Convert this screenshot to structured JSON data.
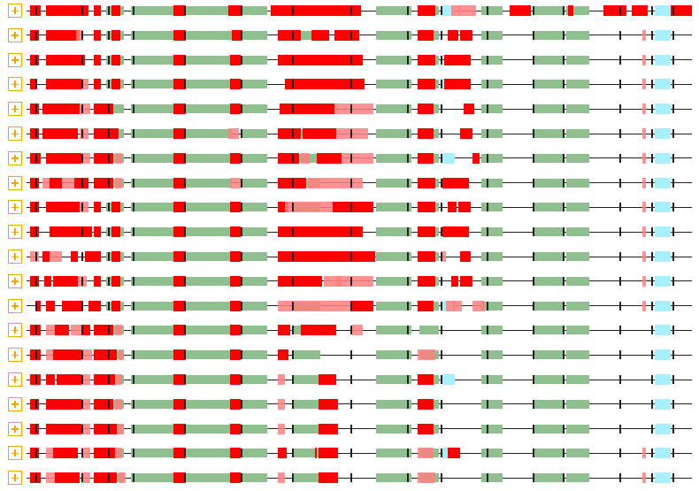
{
  "viewer": {
    "row_count": 20,
    "colors": {
      "highlight": "#ff0000",
      "partial": "#ff7f7f",
      "segment": "#8fbf8f",
      "marker": "#a8f0ff",
      "line": "#222222",
      "button": "#f0a500"
    },
    "row_icon": "plus-icon"
  }
}
